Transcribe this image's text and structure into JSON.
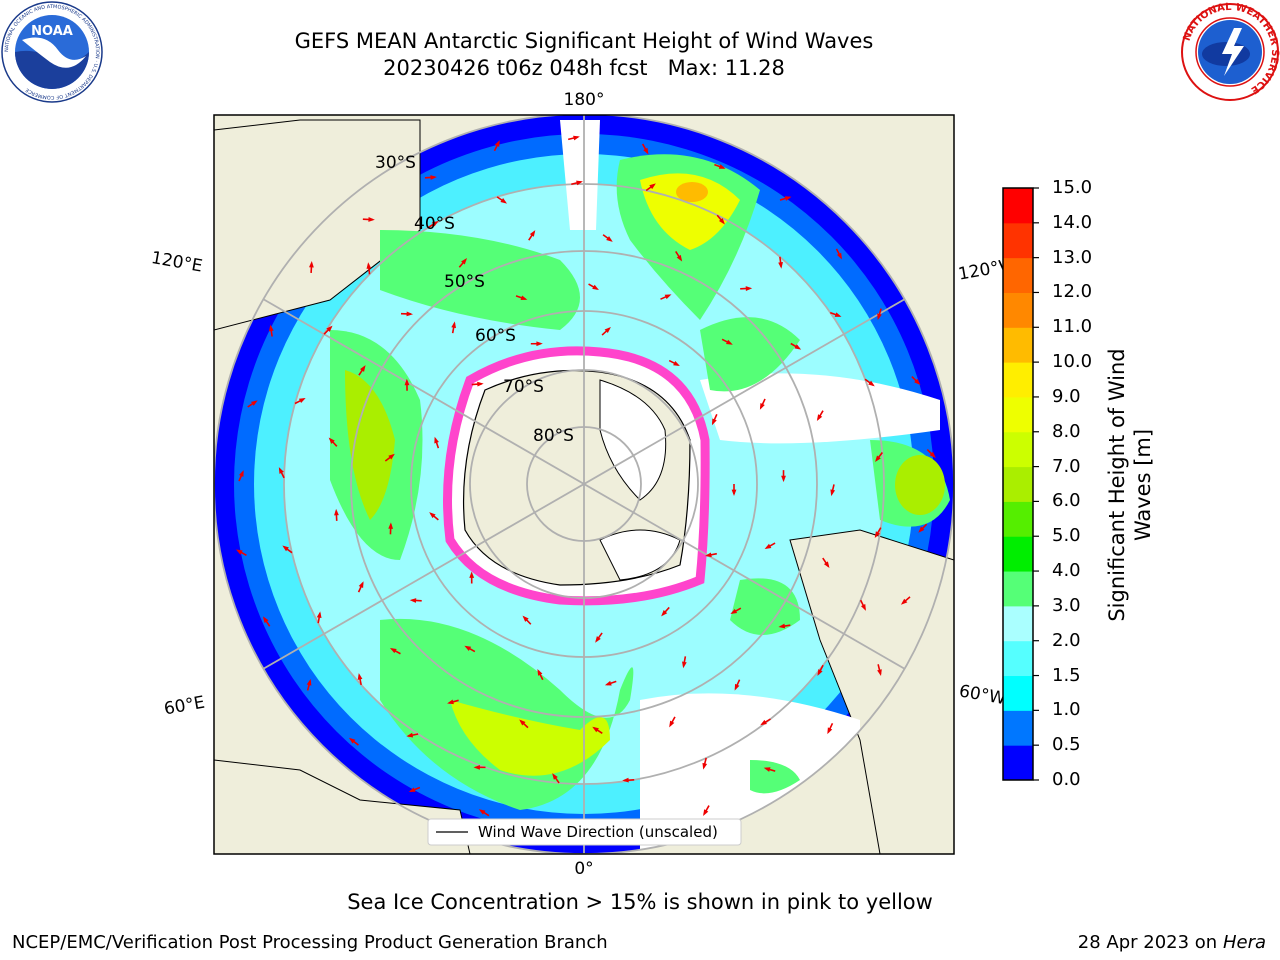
{
  "header": {
    "title_line1": "GEFS MEAN Antarctic Significant Height of Wind Waves",
    "title_line2": "20230426 t06z 048h fcst   Max: 11.28"
  },
  "logos": {
    "left": {
      "name": "noaa-logo",
      "text": "NOAA",
      "ring_text": "NATIONAL OCEANIC AND ATMOSPHERIC ADMINISTRATION · U.S. DEPARTMENT OF COMMERCE"
    },
    "right": {
      "name": "nws-logo",
      "ring_text": "NATIONAL WEATHER SERVICE"
    }
  },
  "map": {
    "projection": "south-polar-stereographic",
    "longitude_labels": {
      "top": "180°",
      "bottom": "0°",
      "upper_left": "120°E",
      "upper_right": "120°W",
      "lower_left": "60°E",
      "lower_right": "60°W"
    },
    "latitude_labels": [
      "30°S",
      "40°S",
      "50°S",
      "60°S",
      "70°S",
      "80°S"
    ],
    "legend": {
      "label": "Wind Wave Direction (unscaled)"
    },
    "colors": {
      "land": "#efeedb",
      "ocean_low": "#0000ff",
      "ice_edge": "#ff55cc",
      "arrow": "#ee0000"
    }
  },
  "colorbar": {
    "label": "Significant Height of Wind Waves [m]",
    "label_line1": "Significant Height of Wind",
    "label_line2": "Waves [m]",
    "ticks": [
      "15.0",
      "14.0",
      "13.0",
      "12.0",
      "11.0",
      "10.0",
      "9.0",
      "8.0",
      "7.0",
      "6.0",
      "5.0",
      "4.0",
      "3.0",
      "2.0",
      "1.5",
      "1.0",
      "0.5",
      "0.0"
    ],
    "colors": [
      "#0000ff",
      "#0077ff",
      "#00ffff",
      "#55ffff",
      "#aaffff",
      "#55ff77",
      "#00ee00",
      "#55ee00",
      "#aaee00",
      "#ccff00",
      "#eeff00",
      "#ffee00",
      "#ffbb00",
      "#ff8800",
      "#ff6600",
      "#ff3300",
      "#ff0000"
    ]
  },
  "footer": {
    "caption": "Sea Ice Concentration > 15% is shown in pink to yellow",
    "credit": "NCEP/EMC/Verification Post Processing Product Generation Branch",
    "date": "28 Apr 2023 on",
    "system": "Hera"
  }
}
